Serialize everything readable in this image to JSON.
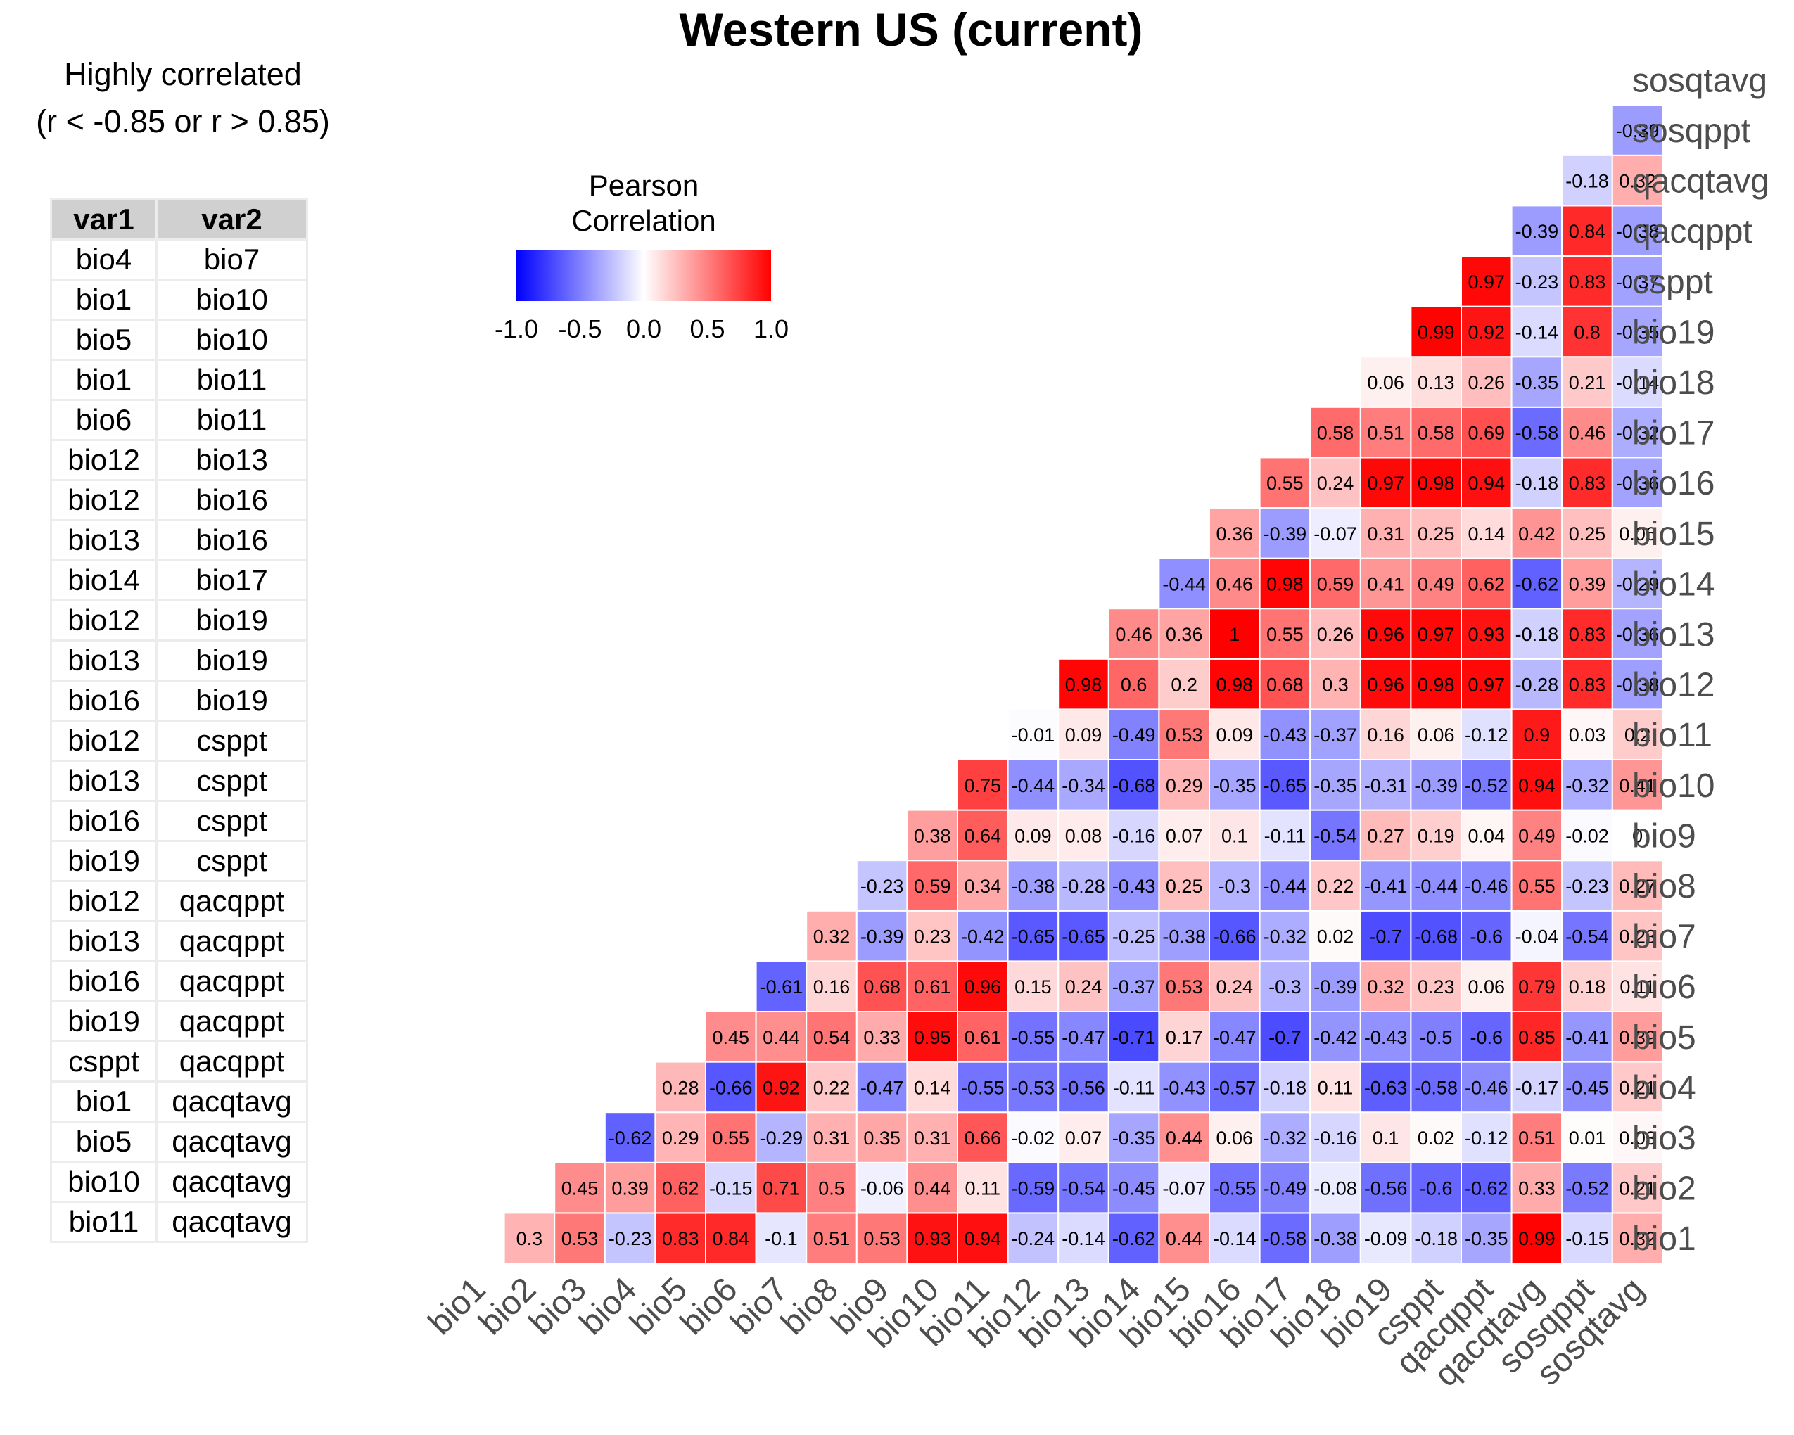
{
  "title": "Western US (current)",
  "side_panel": {
    "heading_line1": "Highly correlated",
    "heading_line2": "(r < -0.85 or r > 0.85)",
    "columns": [
      "var1",
      "var2"
    ],
    "rows": [
      [
        "bio4",
        "bio7"
      ],
      [
        "bio1",
        "bio10"
      ],
      [
        "bio5",
        "bio10"
      ],
      [
        "bio1",
        "bio11"
      ],
      [
        "bio6",
        "bio11"
      ],
      [
        "bio12",
        "bio13"
      ],
      [
        "bio12",
        "bio16"
      ],
      [
        "bio13",
        "bio16"
      ],
      [
        "bio14",
        "bio17"
      ],
      [
        "bio12",
        "bio19"
      ],
      [
        "bio13",
        "bio19"
      ],
      [
        "bio16",
        "bio19"
      ],
      [
        "bio12",
        "csppt"
      ],
      [
        "bio13",
        "csppt"
      ],
      [
        "bio16",
        "csppt"
      ],
      [
        "bio19",
        "csppt"
      ],
      [
        "bio12",
        "qacqppt"
      ],
      [
        "bio13",
        "qacqppt"
      ],
      [
        "bio16",
        "qacqppt"
      ],
      [
        "bio19",
        "qacqppt"
      ],
      [
        "csppt",
        "qacqppt"
      ],
      [
        "bio1",
        "qacqtavg"
      ],
      [
        "bio5",
        "qacqtavg"
      ],
      [
        "bio10",
        "qacqtavg"
      ],
      [
        "bio11",
        "qacqtavg"
      ]
    ]
  },
  "chart_data": {
    "type": "heatmap",
    "title": "Western US (current)",
    "variables": [
      "bio1",
      "bio2",
      "bio3",
      "bio4",
      "bio5",
      "bio6",
      "bio7",
      "bio8",
      "bio9",
      "bio10",
      "bio11",
      "bio12",
      "bio13",
      "bio14",
      "bio15",
      "bio16",
      "bio17",
      "bio18",
      "bio19",
      "csppt",
      "qacqppt",
      "qacqtavg",
      "sosqppt",
      "sosqtavg"
    ],
    "legend": {
      "title_line1": "Pearson",
      "title_line2": "Correlation",
      "ticks": [
        "-1.0",
        "-0.5",
        "0.0",
        "0.5",
        "1.0"
      ],
      "range": [
        -1,
        1
      ],
      "colors": {
        "low": "#0000ff",
        "mid": "#ffffff",
        "high": "#ff0000"
      }
    },
    "rows": {
      "sosqppt": [
        "-0.39"
      ],
      "qacqtavg": [
        "-0.18",
        "0.32"
      ],
      "qacqppt": [
        "-0.39",
        "0.84",
        "-0.38"
      ],
      "csppt": [
        "0.97",
        "-0.23",
        "0.83",
        "-0.37"
      ],
      "bio19": [
        "0.99",
        "0.92",
        "-0.14",
        "0.8",
        "-0.35"
      ],
      "bio18": [
        "0.06",
        "0.13",
        "0.26",
        "-0.35",
        "0.21",
        "-0.14"
      ],
      "bio17": [
        "0.58",
        "0.51",
        "0.58",
        "0.69",
        "-0.58",
        "0.46",
        "-0.32"
      ],
      "bio16": [
        "0.55",
        "0.24",
        "0.97",
        "0.98",
        "0.94",
        "-0.18",
        "0.83",
        "-0.36"
      ],
      "bio15": [
        "0.36",
        "-0.39",
        "-0.07",
        "0.31",
        "0.25",
        "0.14",
        "0.42",
        "0.25",
        "0.06"
      ],
      "bio14": [
        "-0.44",
        "0.46",
        "0.98",
        "0.59",
        "0.41",
        "0.49",
        "0.62",
        "-0.62",
        "0.39",
        "-0.29"
      ],
      "bio13": [
        "0.46",
        "0.36",
        "1",
        "0.55",
        "0.26",
        "0.96",
        "0.97",
        "0.93",
        "-0.18",
        "0.83",
        "-0.36"
      ],
      "bio12": [
        "0.98",
        "0.6",
        "0.2",
        "0.98",
        "0.68",
        "0.3",
        "0.96",
        "0.98",
        "0.97",
        "-0.28",
        "0.83",
        "-0.38"
      ],
      "bio11": [
        "-0.01",
        "0.09",
        "-0.49",
        "0.53",
        "0.09",
        "-0.43",
        "-0.37",
        "0.16",
        "0.06",
        "-0.12",
        "0.9",
        "0.03",
        "0.2"
      ],
      "bio10": [
        "0.75",
        "-0.44",
        "-0.34",
        "-0.68",
        "0.29",
        "-0.35",
        "-0.65",
        "-0.35",
        "-0.31",
        "-0.39",
        "-0.52",
        "0.94",
        "-0.32",
        "0.41"
      ],
      "bio9": [
        "0.38",
        "0.64",
        "0.09",
        "0.08",
        "-0.16",
        "0.07",
        "0.1",
        "-0.11",
        "-0.54",
        "0.27",
        "0.19",
        "0.04",
        "0.49",
        "-0.02",
        "0"
      ],
      "bio8": [
        "-0.23",
        "0.59",
        "0.34",
        "-0.38",
        "-0.28",
        "-0.43",
        "0.25",
        "-0.3",
        "-0.44",
        "0.22",
        "-0.41",
        "-0.44",
        "-0.46",
        "0.55",
        "-0.23",
        "0.27"
      ],
      "bio7": [
        "0.32",
        "-0.39",
        "0.23",
        "-0.42",
        "-0.65",
        "-0.65",
        "-0.25",
        "-0.38",
        "-0.66",
        "-0.32",
        "0.02",
        "-0.7",
        "-0.68",
        "-0.6",
        "-0.04",
        "-0.54",
        "0.23"
      ],
      "bio6": [
        "-0.61",
        "0.16",
        "0.68",
        "0.61",
        "0.96",
        "0.15",
        "0.24",
        "-0.37",
        "0.53",
        "0.24",
        "-0.3",
        "-0.39",
        "0.32",
        "0.23",
        "0.06",
        "0.79",
        "0.18",
        "0.11"
      ],
      "bio5": [
        "0.45",
        "0.44",
        "0.54",
        "0.33",
        "0.95",
        "0.61",
        "-0.55",
        "-0.47",
        "-0.71",
        "0.17",
        "-0.47",
        "-0.7",
        "-0.42",
        "-0.43",
        "-0.5",
        "-0.6",
        "0.85",
        "-0.41",
        "0.39"
      ],
      "bio4": [
        "0.28",
        "-0.66",
        "0.92",
        "0.22",
        "-0.47",
        "0.14",
        "-0.55",
        "-0.53",
        "-0.56",
        "-0.11",
        "-0.43",
        "-0.57",
        "-0.18",
        "0.11",
        "-0.63",
        "-0.58",
        "-0.46",
        "-0.17",
        "-0.45",
        "0.21"
      ],
      "bio3": [
        "-0.62",
        "0.29",
        "0.55",
        "-0.29",
        "0.31",
        "0.35",
        "0.31",
        "0.66",
        "-0.02",
        "0.07",
        "-0.35",
        "0.44",
        "0.06",
        "-0.32",
        "-0.16",
        "0.1",
        "0.02",
        "-0.12",
        "0.51",
        "0.01",
        "0.03"
      ],
      "bio2": [
        "0.45",
        "0.39",
        "0.62",
        "-0.15",
        "0.71",
        "0.5",
        "-0.06",
        "0.44",
        "0.11",
        "-0.59",
        "-0.54",
        "-0.45",
        "-0.07",
        "-0.55",
        "-0.49",
        "-0.08",
        "-0.56",
        "-0.6",
        "-0.62",
        "0.33",
        "-0.52",
        "0.21"
      ],
      "bio1": [
        "0.3",
        "0.53",
        "-0.23",
        "0.83",
        "0.84",
        "-0.1",
        "0.51",
        "0.53",
        "0.93",
        "0.94",
        "-0.24",
        "-0.14",
        "-0.62",
        "0.44",
        "-0.14",
        "-0.58",
        "-0.38",
        "-0.09",
        "-0.18",
        "-0.35",
        "0.99",
        "-0.15",
        "0.32"
      ]
    }
  }
}
